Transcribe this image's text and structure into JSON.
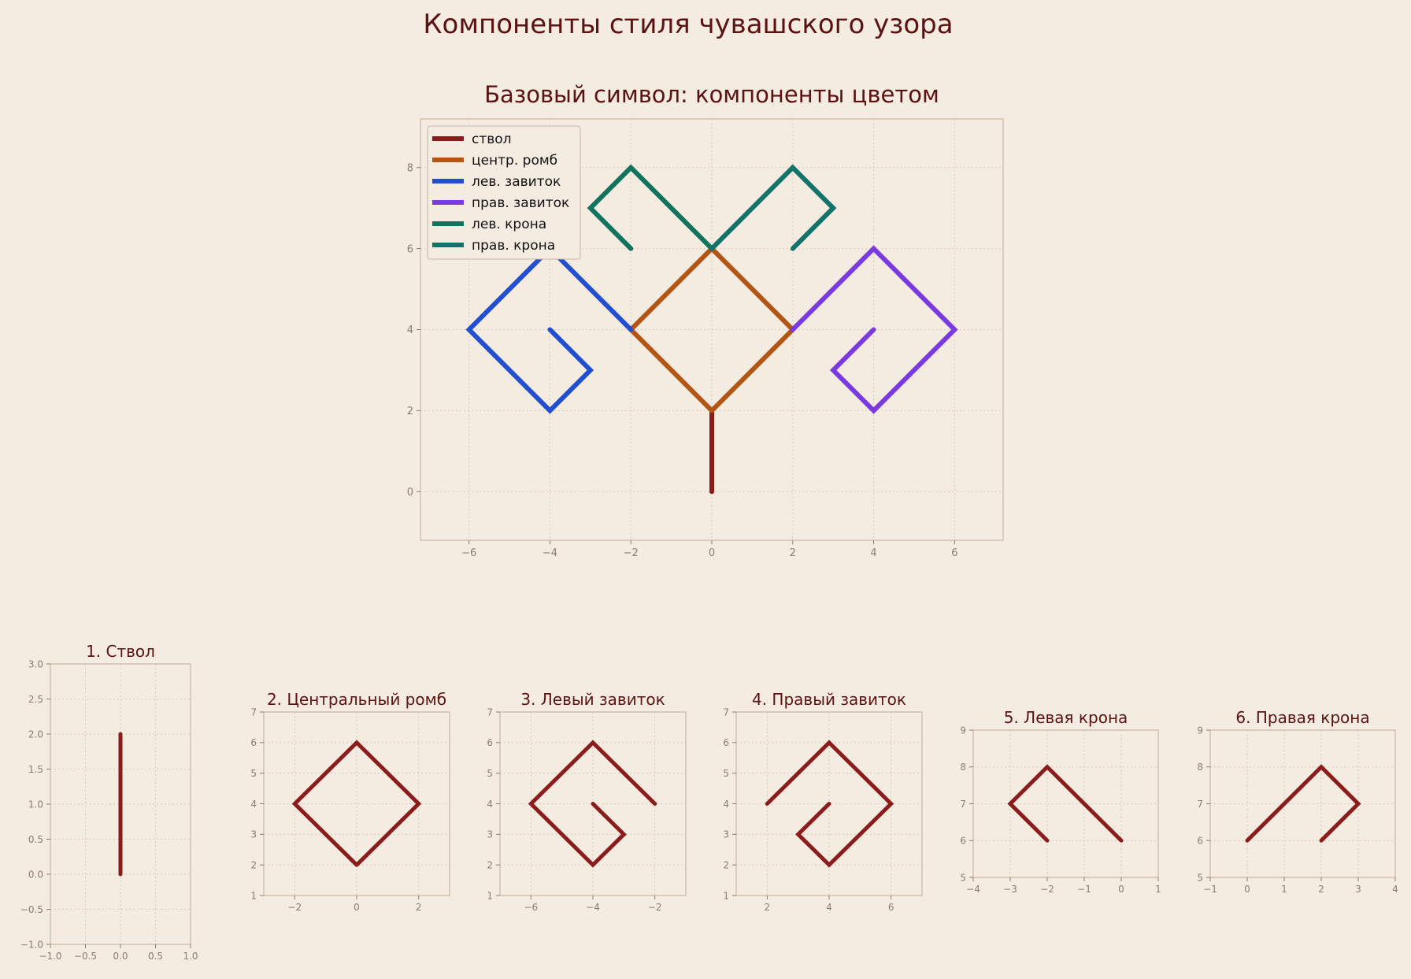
{
  "suptitle": "Компоненты стиля чувашского узора",
  "colors": {
    "background": "#f4ebe1",
    "text": "#5a1212",
    "frame": "#c9b6a2",
    "grid": "#d9cbbd",
    "tick_label": "#8a7c70",
    "mono": "#8b1c1c"
  },
  "chart_data": [
    {
      "type": "line",
      "title": "Базовый символ: компоненты цветом",
      "xlabel": "",
      "ylabel": "",
      "xlim": [
        -7.2,
        7.2
      ],
      "ylim": [
        -1.2,
        9.2
      ],
      "xticks": [
        -6,
        -4,
        -2,
        0,
        2,
        4,
        6
      ],
      "yticks": [
        0,
        2,
        4,
        6,
        8
      ],
      "grid": true,
      "legend": "top-left",
      "series": [
        {
          "name": "ствол",
          "color": "#8b1c1c",
          "x": [
            0,
            0
          ],
          "y": [
            0,
            2
          ]
        },
        {
          "name": "центр. ромб",
          "color": "#b35514",
          "x": [
            0,
            2,
            0,
            -2,
            0
          ],
          "y": [
            2,
            4,
            6,
            4,
            2
          ]
        },
        {
          "name": "лев. завиток",
          "color": "#214fd0",
          "x": [
            -2,
            -4,
            -6,
            -4,
            -3,
            -4
          ],
          "y": [
            4,
            6,
            4,
            2,
            3,
            4
          ]
        },
        {
          "name": "прав. завиток",
          "color": "#7b3ae0",
          "x": [
            2,
            4,
            6,
            4,
            3,
            4
          ],
          "y": [
            4,
            6,
            4,
            2,
            3,
            4
          ]
        },
        {
          "name": "лев. крона",
          "color": "#10735d",
          "x": [
            0,
            -2,
            -3,
            -2
          ],
          "y": [
            6,
            8,
            7,
            6
          ]
        },
        {
          "name": "прав. крона",
          "color": "#12736a",
          "x": [
            0,
            2,
            3,
            2
          ],
          "y": [
            6,
            8,
            7,
            6
          ]
        }
      ]
    },
    {
      "type": "line",
      "title": "1. Ствол",
      "xlim": [
        -1,
        1
      ],
      "ylim": [
        -1,
        3
      ],
      "xticks": [
        -1.0,
        -0.5,
        0.0,
        0.5,
        1.0
      ],
      "xticklabels": [
        "−1.0",
        "−0.5",
        "0.0",
        "0.5",
        "1.0"
      ],
      "yticks": [
        -1.0,
        -0.5,
        0.0,
        0.5,
        1.0,
        1.5,
        2.0,
        2.5,
        3.0
      ],
      "yticklabels": [
        "−1.0",
        "−0.5",
        "0.0",
        "0.5",
        "1.0",
        "1.5",
        "2.0",
        "2.5",
        "3.0"
      ],
      "grid": true,
      "series": [
        {
          "x": [
            0,
            0
          ],
          "y": [
            0,
            2
          ]
        }
      ]
    },
    {
      "type": "line",
      "title": "2. Центральный ромб",
      "xlim": [
        -3,
        3
      ],
      "ylim": [
        1,
        7
      ],
      "xticks": [
        -2,
        0,
        2
      ],
      "yticks": [
        1,
        2,
        3,
        4,
        5,
        6,
        7
      ],
      "grid": true,
      "series": [
        {
          "x": [
            0,
            2,
            0,
            -2,
            0
          ],
          "y": [
            2,
            4,
            6,
            4,
            2
          ]
        }
      ]
    },
    {
      "type": "line",
      "title": "3. Левый завиток",
      "xlim": [
        -7,
        -1
      ],
      "ylim": [
        1,
        7
      ],
      "xticks": [
        -6,
        -4,
        -2
      ],
      "yticks": [
        1,
        2,
        3,
        4,
        5,
        6,
        7
      ],
      "grid": true,
      "series": [
        {
          "x": [
            -2,
            -4,
            -6,
            -4,
            -3,
            -4
          ],
          "y": [
            4,
            6,
            4,
            2,
            3,
            4
          ]
        }
      ]
    },
    {
      "type": "line",
      "title": "4. Правый завиток",
      "xlim": [
        1,
        7
      ],
      "ylim": [
        1,
        7
      ],
      "xticks": [
        2,
        4,
        6
      ],
      "yticks": [
        1,
        2,
        3,
        4,
        5,
        6,
        7
      ],
      "grid": true,
      "series": [
        {
          "x": [
            2,
            4,
            6,
            4,
            3,
            4
          ],
          "y": [
            4,
            6,
            4,
            2,
            3,
            4
          ]
        }
      ]
    },
    {
      "type": "line",
      "title": "5. Левая крона",
      "xlim": [
        -4,
        1
      ],
      "ylim": [
        5,
        9
      ],
      "xticks": [
        -4,
        -3,
        -2,
        -1,
        0,
        1
      ],
      "yticks": [
        5,
        6,
        7,
        8,
        9
      ],
      "grid": true,
      "series": [
        {
          "x": [
            0,
            -2,
            -3,
            -2
          ],
          "y": [
            6,
            8,
            7,
            6
          ]
        }
      ]
    },
    {
      "type": "line",
      "title": "6. Правая крона",
      "xlim": [
        -1,
        4
      ],
      "ylim": [
        5,
        9
      ],
      "xticks": [
        -1,
        0,
        1,
        2,
        3,
        4
      ],
      "yticks": [
        5,
        6,
        7,
        8,
        9
      ],
      "grid": true,
      "series": [
        {
          "x": [
            0,
            2,
            3,
            2
          ],
          "y": [
            6,
            8,
            7,
            6
          ]
        }
      ]
    }
  ]
}
